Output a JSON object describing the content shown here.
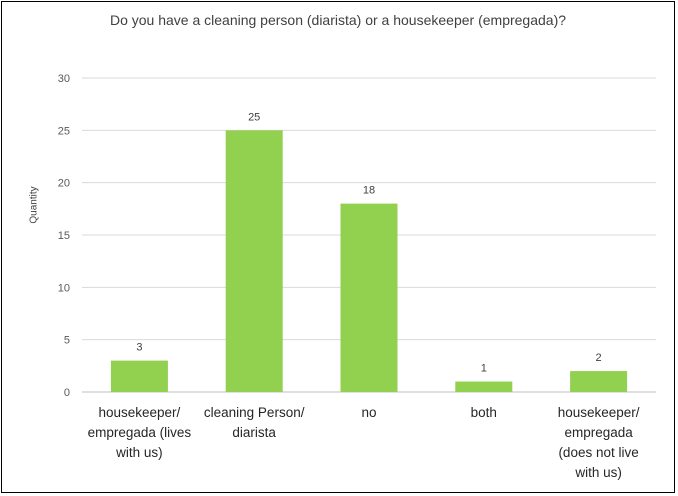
{
  "chart_data": {
    "type": "bar",
    "title": "Do you have a cleaning person (diarista) or a housekeeper (empregada)?",
    "xlabel": "",
    "ylabel": "Quantity",
    "categories": [
      "housekeeper/ empregada (lives with us)",
      "cleaning Person/ diarista",
      "no",
      "both",
      "housekeeper/ empregada (does not live with us)"
    ],
    "values": [
      3,
      25,
      18,
      1,
      2
    ],
    "ylim": [
      0,
      30
    ],
    "yticks": [
      0,
      5,
      10,
      15,
      20,
      25,
      30
    ],
    "grid": true,
    "bar_color": "#92d050",
    "data_labels": true
  }
}
